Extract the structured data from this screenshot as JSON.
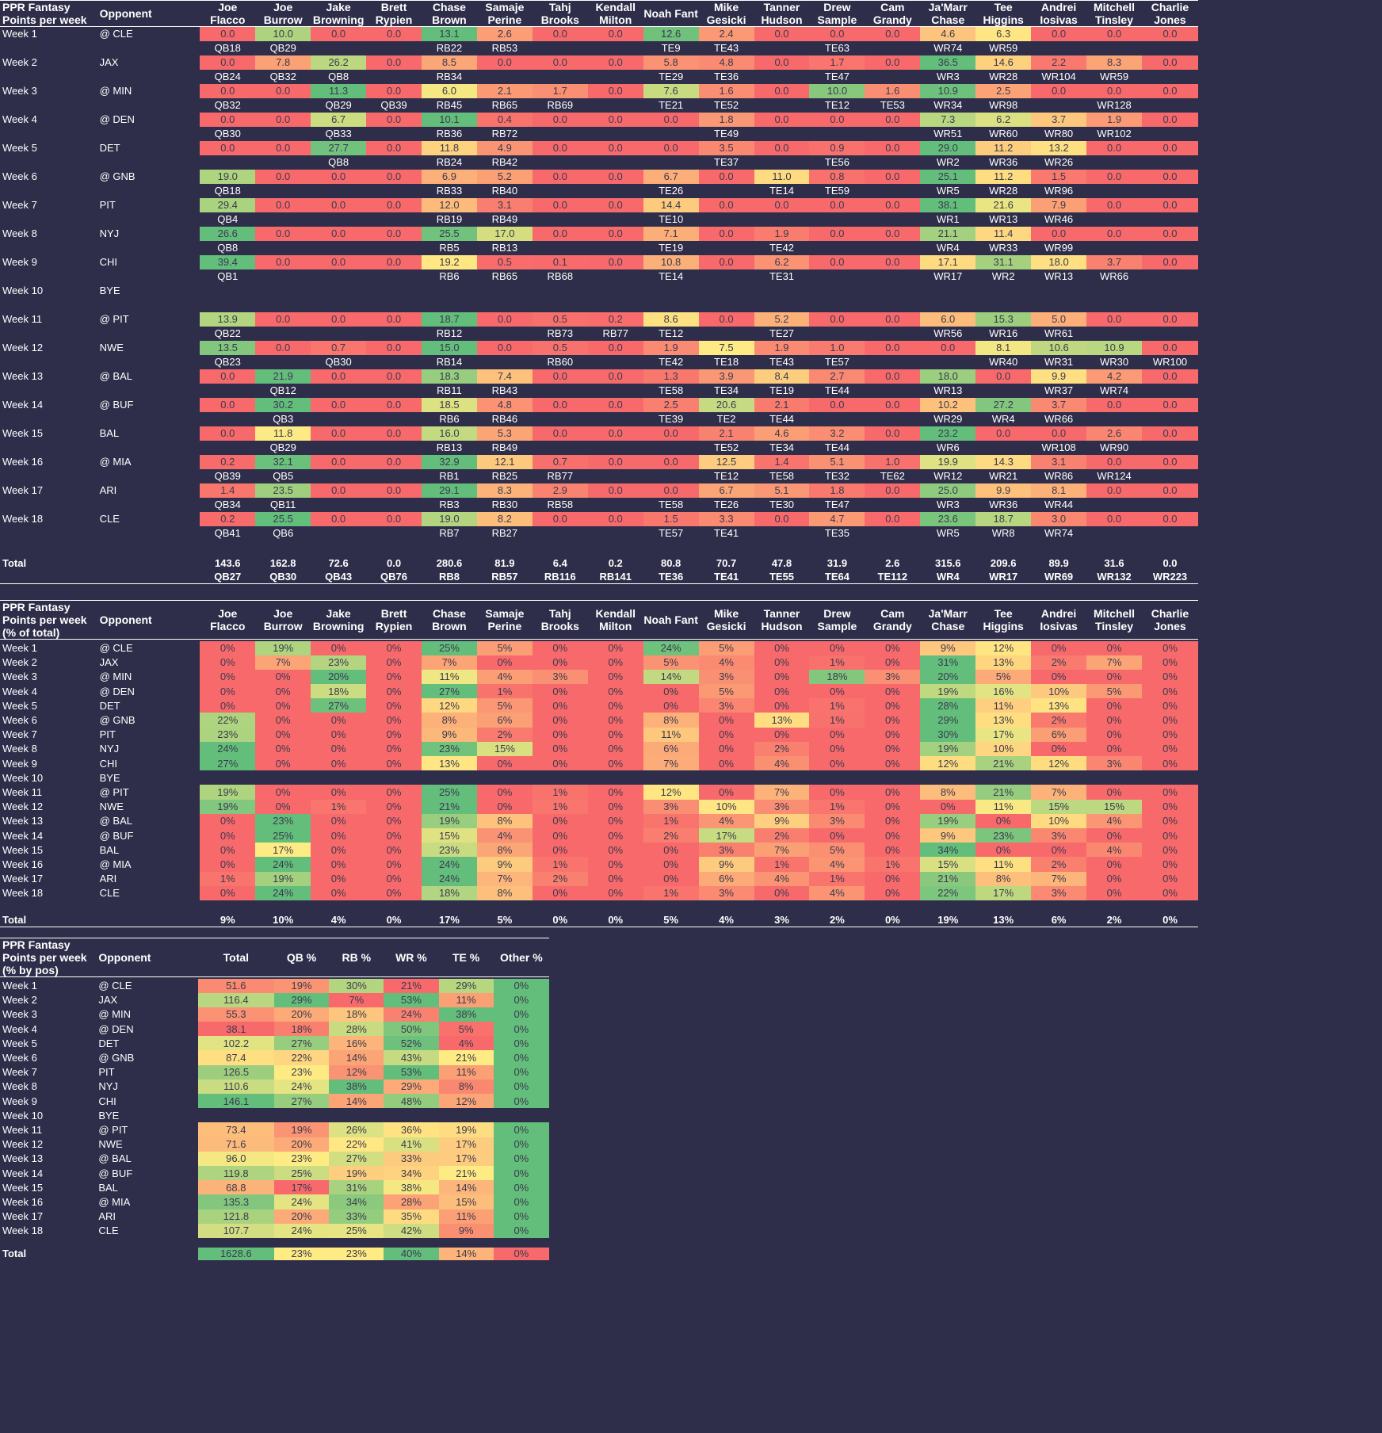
{
  "colors": {
    "red": "#f8696b",
    "yellow": "#ffeb84",
    "green": "#63be7b",
    "bg": "#2f2e4a"
  },
  "players": [
    "Joe Flacco",
    "Joe Burrow",
    "Jake Browning",
    "Brett Rypien",
    "Chase Brown",
    "Samaje Perine",
    "Tahj Brooks",
    "Kendall Milton",
    "Noah Fant",
    "Mike Gesicki",
    "Tanner Hudson",
    "Drew Sample",
    "Cam Grandy",
    "Ja'Marr Chase",
    "Tee Higgins",
    "Andrei Iosivas",
    "Mitchell Tinsley",
    "Charlie Jones"
  ],
  "weeks": [
    "Week 1",
    "Week 2",
    "Week 3",
    "Week 4",
    "Week 5",
    "Week 6",
    "Week 7",
    "Week 8",
    "Week 9",
    "Week 10",
    "Week 11",
    "Week 12",
    "Week 13",
    "Week 14",
    "Week 15",
    "Week 16",
    "Week 17",
    "Week 18"
  ],
  "opponents": [
    "@ CLE",
    "JAX",
    "@ MIN",
    "@ DEN",
    "DET",
    "@ GNB",
    "PIT",
    "NYJ",
    "CHI",
    "BYE",
    "@ PIT",
    "NWE",
    "@ BAL",
    "@ BUF",
    "BAL",
    "@ MIA",
    "ARI",
    "CLE"
  ],
  "table1": {
    "title": "PPR Fantasy Points per week",
    "opponent_header": "Opponent",
    "total_label": "Total",
    "points": [
      [
        "0.0",
        "10.0",
        "0.0",
        "0.0",
        "13.1",
        "2.6",
        "0.0",
        "0.0",
        "12.6",
        "2.4",
        "0.0",
        "0.0",
        "0.0",
        "4.6",
        "6.3",
        "0.0",
        "0.0",
        "0.0"
      ],
      [
        "0.0",
        "7.8",
        "26.2",
        "0.0",
        "8.5",
        "0.0",
        "0.0",
        "0.0",
        "5.8",
        "4.8",
        "0.0",
        "1.7",
        "0.0",
        "36.5",
        "14.6",
        "2.2",
        "8.3",
        "0.0"
      ],
      [
        "0.0",
        "0.0",
        "11.3",
        "0.0",
        "6.0",
        "2.1",
        "1.7",
        "0.0",
        "7.6",
        "1.6",
        "0.0",
        "10.0",
        "1.6",
        "10.9",
        "2.5",
        "0.0",
        "0.0",
        "0.0"
      ],
      [
        "0.0",
        "0.0",
        "6.7",
        "0.0",
        "10.1",
        "0.4",
        "0.0",
        "0.0",
        "0.0",
        "1.8",
        "0.0",
        "0.0",
        "0.0",
        "7.3",
        "6.2",
        "3.7",
        "1.9",
        "0.0"
      ],
      [
        "0.0",
        "0.0",
        "27.7",
        "0.0",
        "11.8",
        "4.9",
        "0.0",
        "0.0",
        "0.0",
        "3.5",
        "0.0",
        "0.9",
        "0.0",
        "29.0",
        "11.2",
        "13.2",
        "0.0",
        "0.0"
      ],
      [
        "19.0",
        "0.0",
        "0.0",
        "0.0",
        "6.9",
        "5.2",
        "0.0",
        "0.0",
        "6.7",
        "0.0",
        "11.0",
        "0.8",
        "0.0",
        "25.1",
        "11.2",
        "1.5",
        "0.0",
        "0.0"
      ],
      [
        "29.4",
        "0.0",
        "0.0",
        "0.0",
        "12.0",
        "3.1",
        "0.0",
        "0.0",
        "14.4",
        "0.0",
        "0.0",
        "0.0",
        "0.0",
        "38.1",
        "21.6",
        "7.9",
        "0.0",
        "0.0"
      ],
      [
        "26.6",
        "0.0",
        "0.0",
        "0.0",
        "25.5",
        "17.0",
        "0.0",
        "0.0",
        "7.1",
        "0.0",
        "1.9",
        "0.0",
        "0.0",
        "21.1",
        "11.4",
        "0.0",
        "0.0",
        "0.0"
      ],
      [
        "39.4",
        "0.0",
        "0.0",
        "0.0",
        "19.2",
        "0.5",
        "0.1",
        "0.0",
        "10.8",
        "0.0",
        "6.2",
        "0.0",
        "0.0",
        "17.1",
        "31.1",
        "18.0",
        "3.7",
        "0.0"
      ],
      null,
      [
        "13.9",
        "0.0",
        "0.0",
        "0.0",
        "18.7",
        "0.0",
        "0.5",
        "0.2",
        "8.6",
        "0.0",
        "5.2",
        "0.0",
        "0.0",
        "6.0",
        "15.3",
        "5.0",
        "0.0",
        "0.0"
      ],
      [
        "13.5",
        "0.0",
        "0.7",
        "0.0",
        "15.0",
        "0.0",
        "0.5",
        "0.0",
        "1.9",
        "7.5",
        "1.9",
        "1.0",
        "0.0",
        "0.0",
        "8.1",
        "10.6",
        "10.9",
        "0.0"
      ],
      [
        "0.0",
        "21.9",
        "0.0",
        "0.0",
        "18.3",
        "7.4",
        "0.0",
        "0.0",
        "1.3",
        "3.9",
        "8.4",
        "2.7",
        "0.0",
        "18.0",
        "0.0",
        "9.9",
        "4.2",
        "0.0"
      ],
      [
        "0.0",
        "30.2",
        "0.0",
        "0.0",
        "18.5",
        "4.8",
        "0.0",
        "0.0",
        "2.5",
        "20.6",
        "2.1",
        "0.0",
        "0.0",
        "10.2",
        "27.2",
        "3.7",
        "0.0",
        "0.0"
      ],
      [
        "0.0",
        "11.8",
        "0.0",
        "0.0",
        "16.0",
        "5.3",
        "0.0",
        "0.0",
        "0.0",
        "2.1",
        "4.6",
        "3.2",
        "0.0",
        "23.2",
        "0.0",
        "0.0",
        "2.6",
        "0.0"
      ],
      [
        "0.2",
        "32.1",
        "0.0",
        "0.0",
        "32.9",
        "12.1",
        "0.7",
        "0.0",
        "0.0",
        "12.5",
        "1.4",
        "5.1",
        "1.0",
        "19.9",
        "14.3",
        "3.1",
        "0.0",
        "0.0"
      ],
      [
        "1.4",
        "23.5",
        "0.0",
        "0.0",
        "29.1",
        "8.3",
        "2.9",
        "0.0",
        "0.0",
        "6.7",
        "5.1",
        "1.8",
        "0.0",
        "25.0",
        "9.9",
        "8.1",
        "0.0",
        "0.0"
      ],
      [
        "0.2",
        "25.5",
        "0.0",
        "0.0",
        "19.0",
        "8.2",
        "0.0",
        "0.0",
        "1.5",
        "3.3",
        "0.0",
        "4.7",
        "0.0",
        "23.6",
        "18.7",
        "3.0",
        "0.0",
        "0.0"
      ]
    ],
    "ranks": [
      [
        "QB18",
        "QB29",
        "",
        "",
        "RB22",
        "RB53",
        "",
        "",
        "TE9",
        "TE43",
        "",
        "TE63",
        "",
        "WR74",
        "WR59",
        "",
        "",
        ""
      ],
      [
        "QB24",
        "QB32",
        "QB8",
        "",
        "RB34",
        "",
        "",
        "",
        "TE29",
        "TE36",
        "",
        "TE47",
        "",
        "WR3",
        "WR28",
        "WR104",
        "WR59",
        ""
      ],
      [
        "QB32",
        "",
        "QB29",
        "QB39",
        "RB45",
        "RB65",
        "RB69",
        "",
        "TE21",
        "TE52",
        "",
        "TE12",
        "TE53",
        "WR34",
        "WR98",
        "",
        "WR128",
        ""
      ],
      [
        "QB30",
        "",
        "QB33",
        "",
        "RB36",
        "RB72",
        "",
        "",
        "",
        "TE49",
        "",
        "",
        "",
        "WR51",
        "WR60",
        "WR80",
        "WR102",
        ""
      ],
      [
        "",
        "",
        "QB8",
        "",
        "RB24",
        "RB42",
        "",
        "",
        "",
        "TE37",
        "",
        "TE56",
        "",
        "WR2",
        "WR36",
        "WR26",
        "",
        ""
      ],
      [
        "QB18",
        "",
        "",
        "",
        "RB33",
        "RB40",
        "",
        "",
        "TE26",
        "",
        "TE14",
        "TE59",
        "",
        "WR5",
        "WR28",
        "WR96",
        "",
        ""
      ],
      [
        "QB4",
        "",
        "",
        "",
        "RB19",
        "RB49",
        "",
        "",
        "TE10",
        "",
        "",
        "",
        "",
        "WR1",
        "WR13",
        "WR46",
        "",
        ""
      ],
      [
        "QB8",
        "",
        "",
        "",
        "RB5",
        "RB13",
        "",
        "",
        "TE19",
        "",
        "TE42",
        "",
        "",
        "WR4",
        "WR33",
        "WR99",
        "",
        ""
      ],
      [
        "QB1",
        "",
        "",
        "",
        "RB6",
        "RB65",
        "RB68",
        "",
        "TE14",
        "",
        "TE31",
        "",
        "",
        "WR17",
        "WR2",
        "WR13",
        "WR66",
        ""
      ],
      null,
      [
        "QB22",
        "",
        "",
        "",
        "RB12",
        "",
        "RB73",
        "RB77",
        "TE12",
        "",
        "TE27",
        "",
        "",
        "WR56",
        "WR16",
        "WR61",
        "",
        ""
      ],
      [
        "QB23",
        "",
        "QB30",
        "",
        "RB14",
        "",
        "RB60",
        "",
        "TE42",
        "TE18",
        "TE43",
        "TE57",
        "",
        "",
        "WR40",
        "WR31",
        "WR30",
        "WR100"
      ],
      [
        "",
        "QB12",
        "",
        "",
        "RB11",
        "RB43",
        "",
        "",
        "TE58",
        "TE34",
        "TE19",
        "TE44",
        "",
        "WR13",
        "",
        "WR37",
        "WR74",
        ""
      ],
      [
        "",
        "QB3",
        "",
        "",
        "RB6",
        "RB46",
        "",
        "",
        "TE39",
        "TE2",
        "TE44",
        "",
        "",
        "WR29",
        "WR4",
        "WR66",
        "",
        ""
      ],
      [
        "",
        "QB29",
        "",
        "",
        "RB13",
        "RB49",
        "",
        "",
        "",
        "TE52",
        "TE34",
        "TE44",
        "",
        "WR6",
        "",
        "WR108",
        "WR90",
        ""
      ],
      [
        "QB39",
        "QB5",
        "",
        "",
        "RB1",
        "RB25",
        "RB77",
        "",
        "",
        "TE12",
        "TE58",
        "TE32",
        "TE62",
        "WR12",
        "WR21",
        "WR86",
        "WR124",
        ""
      ],
      [
        "QB34",
        "QB11",
        "",
        "",
        "RB3",
        "RB30",
        "RB58",
        "",
        "TE58",
        "TE26",
        "TE30",
        "TE47",
        "",
        "WR3",
        "WR36",
        "WR44",
        "",
        ""
      ],
      [
        "QB41",
        "QB6",
        "",
        "",
        "RB7",
        "RB27",
        "",
        "",
        "TE57",
        "TE41",
        "",
        "TE35",
        "",
        "WR5",
        "WR8",
        "WR74",
        "",
        ""
      ]
    ],
    "totals": [
      "143.6",
      "162.8",
      "72.6",
      "0.0",
      "280.6",
      "81.9",
      "6.4",
      "0.2",
      "80.8",
      "70.7",
      "47.8",
      "31.9",
      "2.6",
      "315.6",
      "209.6",
      "89.9",
      "31.6",
      "0.0"
    ],
    "total_ranks": [
      "QB27",
      "QB30",
      "QB43",
      "QB76",
      "RB8",
      "RB57",
      "RB116",
      "RB141",
      "TE36",
      "TE41",
      "TE55",
      "TE64",
      "TE112",
      "WR4",
      "WR17",
      "WR69",
      "WR132",
      "WR223"
    ]
  },
  "table2": {
    "title": "PPR Fantasy Points per week (% of total)",
    "opponent_header": "Opponent",
    "total_label": "Total",
    "pcts": [
      [
        "0%",
        "19%",
        "0%",
        "0%",
        "25%",
        "5%",
        "0%",
        "0%",
        "24%",
        "5%",
        "0%",
        "0%",
        "0%",
        "9%",
        "12%",
        "0%",
        "0%",
        "0%"
      ],
      [
        "0%",
        "7%",
        "23%",
        "0%",
        "7%",
        "0%",
        "0%",
        "0%",
        "5%",
        "4%",
        "0%",
        "1%",
        "0%",
        "31%",
        "13%",
        "2%",
        "7%",
        "0%"
      ],
      [
        "0%",
        "0%",
        "20%",
        "0%",
        "11%",
        "4%",
        "3%",
        "0%",
        "14%",
        "3%",
        "0%",
        "18%",
        "3%",
        "20%",
        "5%",
        "0%",
        "0%",
        "0%"
      ],
      [
        "0%",
        "0%",
        "18%",
        "0%",
        "27%",
        "1%",
        "0%",
        "0%",
        "0%",
        "5%",
        "0%",
        "0%",
        "0%",
        "19%",
        "16%",
        "10%",
        "5%",
        "0%"
      ],
      [
        "0%",
        "0%",
        "27%",
        "0%",
        "12%",
        "5%",
        "0%",
        "0%",
        "0%",
        "3%",
        "0%",
        "1%",
        "0%",
        "28%",
        "11%",
        "13%",
        "0%",
        "0%"
      ],
      [
        "22%",
        "0%",
        "0%",
        "0%",
        "8%",
        "6%",
        "0%",
        "0%",
        "8%",
        "0%",
        "13%",
        "1%",
        "0%",
        "29%",
        "13%",
        "2%",
        "0%",
        "0%"
      ],
      [
        "23%",
        "0%",
        "0%",
        "0%",
        "9%",
        "2%",
        "0%",
        "0%",
        "11%",
        "0%",
        "0%",
        "0%",
        "0%",
        "30%",
        "17%",
        "6%",
        "0%",
        "0%"
      ],
      [
        "24%",
        "0%",
        "0%",
        "0%",
        "23%",
        "15%",
        "0%",
        "0%",
        "6%",
        "0%",
        "2%",
        "0%",
        "0%",
        "19%",
        "10%",
        "0%",
        "0%",
        "0%"
      ],
      [
        "27%",
        "0%",
        "0%",
        "0%",
        "13%",
        "0%",
        "0%",
        "0%",
        "7%",
        "0%",
        "4%",
        "0%",
        "0%",
        "12%",
        "21%",
        "12%",
        "3%",
        "0%"
      ],
      null,
      [
        "19%",
        "0%",
        "0%",
        "0%",
        "25%",
        "0%",
        "1%",
        "0%",
        "12%",
        "0%",
        "7%",
        "0%",
        "0%",
        "8%",
        "21%",
        "7%",
        "0%",
        "0%"
      ],
      [
        "19%",
        "0%",
        "1%",
        "0%",
        "21%",
        "0%",
        "1%",
        "0%",
        "3%",
        "10%",
        "3%",
        "1%",
        "0%",
        "0%",
        "11%",
        "15%",
        "15%",
        "0%"
      ],
      [
        "0%",
        "23%",
        "0%",
        "0%",
        "19%",
        "8%",
        "0%",
        "0%",
        "1%",
        "4%",
        "9%",
        "3%",
        "0%",
        "19%",
        "0%",
        "10%",
        "4%",
        "0%"
      ],
      [
        "0%",
        "25%",
        "0%",
        "0%",
        "15%",
        "4%",
        "0%",
        "0%",
        "2%",
        "17%",
        "2%",
        "0%",
        "0%",
        "9%",
        "23%",
        "3%",
        "0%",
        "0%"
      ],
      [
        "0%",
        "17%",
        "0%",
        "0%",
        "23%",
        "8%",
        "0%",
        "0%",
        "0%",
        "3%",
        "7%",
        "5%",
        "0%",
        "34%",
        "0%",
        "0%",
        "4%",
        "0%"
      ],
      [
        "0%",
        "24%",
        "0%",
        "0%",
        "24%",
        "9%",
        "1%",
        "0%",
        "0%",
        "9%",
        "1%",
        "4%",
        "1%",
        "15%",
        "11%",
        "2%",
        "0%",
        "0%"
      ],
      [
        "1%",
        "19%",
        "0%",
        "0%",
        "24%",
        "7%",
        "2%",
        "0%",
        "0%",
        "6%",
        "4%",
        "1%",
        "0%",
        "21%",
        "8%",
        "7%",
        "0%",
        "0%"
      ],
      [
        "0%",
        "24%",
        "0%",
        "0%",
        "18%",
        "8%",
        "0%",
        "0%",
        "1%",
        "3%",
        "0%",
        "4%",
        "0%",
        "22%",
        "17%",
        "3%",
        "0%",
        "0%"
      ]
    ],
    "totals": [
      "9%",
      "10%",
      "4%",
      "0%",
      "17%",
      "5%",
      "0%",
      "0%",
      "5%",
      "4%",
      "3%",
      "2%",
      "0%",
      "19%",
      "13%",
      "6%",
      "2%",
      "0%"
    ]
  },
  "table3": {
    "title": "PPR Fantasy Points per week (% by pos)",
    "opponent_header": "Opponent",
    "total_label": "Total",
    "headers": [
      "Total",
      "QB %",
      "RB %",
      "WR %",
      "TE %",
      "Other %"
    ],
    "rows": [
      [
        "51.6",
        "19%",
        "30%",
        "21%",
        "29%",
        "0%"
      ],
      [
        "116.4",
        "29%",
        "7%",
        "53%",
        "11%",
        "0%"
      ],
      [
        "55.3",
        "20%",
        "18%",
        "24%",
        "38%",
        "0%"
      ],
      [
        "38.1",
        "18%",
        "28%",
        "50%",
        "5%",
        "0%"
      ],
      [
        "102.2",
        "27%",
        "16%",
        "52%",
        "4%",
        "0%"
      ],
      [
        "87.4",
        "22%",
        "14%",
        "43%",
        "21%",
        "0%"
      ],
      [
        "126.5",
        "23%",
        "12%",
        "53%",
        "11%",
        "0%"
      ],
      [
        "110.6",
        "24%",
        "38%",
        "29%",
        "8%",
        "0%"
      ],
      [
        "146.1",
        "27%",
        "14%",
        "48%",
        "12%",
        "0%"
      ],
      null,
      [
        "73.4",
        "19%",
        "26%",
        "36%",
        "19%",
        "0%"
      ],
      [
        "71.6",
        "20%",
        "22%",
        "41%",
        "17%",
        "0%"
      ],
      [
        "96.0",
        "23%",
        "27%",
        "33%",
        "17%",
        "0%"
      ],
      [
        "119.8",
        "25%",
        "19%",
        "34%",
        "21%",
        "0%"
      ],
      [
        "68.8",
        "17%",
        "31%",
        "38%",
        "14%",
        "0%"
      ],
      [
        "135.3",
        "24%",
        "34%",
        "28%",
        "15%",
        "0%"
      ],
      [
        "121.8",
        "20%",
        "33%",
        "35%",
        "11%",
        "0%"
      ],
      [
        "107.7",
        "24%",
        "25%",
        "42%",
        "9%",
        "0%"
      ]
    ],
    "totals": [
      "1628.6",
      "23%",
      "23%",
      "40%",
      "14%",
      "0%"
    ]
  }
}
